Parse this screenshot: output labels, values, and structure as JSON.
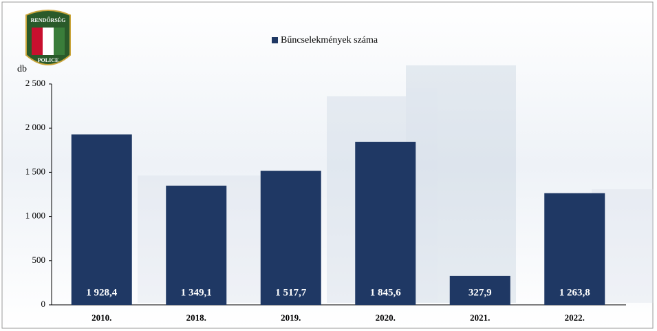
{
  "chart_data": {
    "type": "bar",
    "legend": "Bűncselekmények száma",
    "y_label": "db",
    "categories": [
      "2010.",
      "2018.",
      "2019.",
      "2020.",
      "2021.",
      "2022."
    ],
    "values": [
      1928.4,
      1349.1,
      1517.7,
      1845.6,
      327.9,
      1263.8
    ],
    "value_labels": [
      "1 928,4",
      "1 349,1",
      "1 517,7",
      "1 845,6",
      "327,9",
      "1 263,8"
    ],
    "color": "#1f3864",
    "ylim": [
      0,
      2500
    ],
    "yticks": [
      0,
      500,
      {
        "value": 1000,
        "label": "1 000"
      },
      {
        "value": 1500,
        "label": "1 500"
      },
      {
        "value": 2000,
        "label": "2 000"
      },
      {
        "value": 2500,
        "label": "2 500"
      }
    ]
  },
  "logo": {
    "top": "RENDŐRSÉG",
    "bottom": "POLICE"
  }
}
